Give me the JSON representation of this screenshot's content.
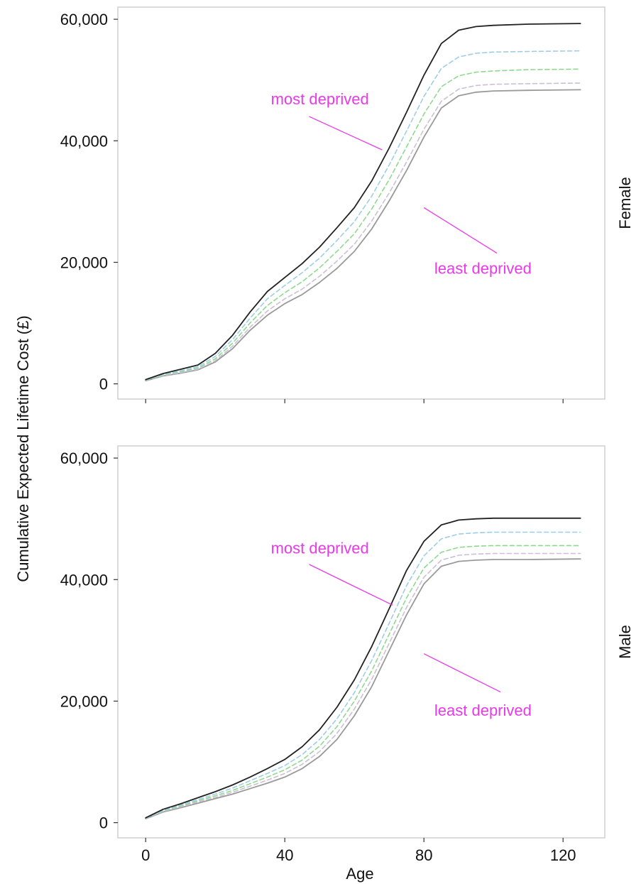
{
  "chart_data": {
    "type": "line",
    "xlabel": "Age",
    "ylabel": "Cumulative Expected Lifetime Cost (£)",
    "xlim": [
      -8,
      132
    ],
    "ylim": [
      -2500,
      62000
    ],
    "x_ticks": [
      0,
      40,
      80,
      120
    ],
    "x_tick_labels": [
      "0",
      "40",
      "80",
      "120"
    ],
    "y_ticks": [
      0,
      20000,
      40000,
      60000
    ],
    "y_tick_labels": [
      "0",
      "20,000",
      "40,000",
      "60,000"
    ],
    "grid": false,
    "annotation_color": "#e83ae8",
    "panels": [
      {
        "strip_label": "Female",
        "annotations": [
          {
            "text": "most deprived",
            "text_x": 36,
            "text_y": 46000,
            "line_from": [
              47,
              44000
            ],
            "line_to": [
              68,
              38500
            ]
          },
          {
            "text": "least deprived",
            "text_x": 83,
            "text_y": 18100,
            "line_from": [
              80,
              29000
            ],
            "line_to": [
              101,
              21500
            ]
          }
        ],
        "series": [
          {
            "style": "solid",
            "color": "#222222",
            "x": [
              0,
              5,
              10,
              15,
              20,
              25,
              30,
              35,
              40,
              45,
              50,
              55,
              60,
              65,
              70,
              75,
              80,
              85,
              90,
              95,
              100,
              110,
              125
            ],
            "y": [
              700,
              1700,
              2400,
              3100,
              5000,
              8000,
              11800,
              15200,
              17500,
              19800,
              22500,
              25700,
              29000,
              33400,
              38800,
              44700,
              50800,
              56000,
              58200,
              58800,
              59000,
              59200,
              59300
            ]
          },
          {
            "style": "dashed",
            "color": "#9ecde8",
            "x": [
              0,
              5,
              10,
              15,
              20,
              25,
              30,
              35,
              40,
              45,
              50,
              55,
              60,
              65,
              70,
              75,
              80,
              85,
              90,
              95,
              100,
              110,
              125
            ],
            "y": [
              650,
              1550,
              2150,
              2800,
              4500,
              7300,
              10800,
              14000,
              16200,
              18300,
              20700,
              23600,
              26700,
              30900,
              36000,
              41600,
              47300,
              51900,
              53800,
              54400,
              54600,
              54700,
              54800
            ]
          },
          {
            "style": "dashed",
            "color": "#8fd98f",
            "x": [
              0,
              5,
              10,
              15,
              20,
              25,
              30,
              35,
              40,
              45,
              50,
              55,
              60,
              65,
              70,
              75,
              80,
              85,
              90,
              95,
              100,
              110,
              125
            ],
            "y": [
              600,
              1450,
              2000,
              2600,
              4100,
              6700,
              10000,
              12900,
              15000,
              16800,
              19100,
              21800,
              24700,
              28800,
              33600,
              39000,
              44400,
              48900,
              50700,
              51300,
              51500,
              51700,
              51800
            ]
          },
          {
            "style": "dashed",
            "color": "#cdbfd6",
            "x": [
              0,
              5,
              10,
              15,
              20,
              25,
              30,
              35,
              40,
              45,
              50,
              55,
              60,
              65,
              70,
              75,
              80,
              85,
              90,
              95,
              100,
              110,
              125
            ],
            "y": [
              560,
              1350,
              1850,
              2400,
              3800,
              6200,
              9300,
              12000,
              14000,
              15600,
              17700,
              20200,
              23000,
              26800,
              31400,
              36500,
              41900,
              46500,
              48500,
              49100,
              49300,
              49400,
              49500
            ]
          },
          {
            "style": "solid",
            "color": "#9a9a9a",
            "x": [
              0,
              5,
              10,
              15,
              20,
              25,
              30,
              35,
              40,
              45,
              50,
              55,
              60,
              65,
              70,
              75,
              80,
              85,
              90,
              95,
              100,
              110,
              125
            ],
            "y": [
              500,
              1300,
              1750,
              2300,
              3600,
              5800,
              8800,
              11300,
              13200,
              14700,
              16700,
              19000,
              21800,
              25500,
              30100,
              35100,
              40600,
              45400,
              47400,
              48000,
              48200,
              48300,
              48400
            ]
          }
        ]
      },
      {
        "strip_label": "Male",
        "annotations": [
          {
            "text": "most deprived",
            "text_x": 36,
            "text_y": 44300,
            "line_from": [
              47,
              42500
            ],
            "line_to": [
              71,
              35800
            ]
          },
          {
            "text": "least deprived",
            "text_x": 83,
            "text_y": 17600,
            "line_from": [
              80,
              27800
            ],
            "line_to": [
              102,
              21500
            ]
          }
        ],
        "series": [
          {
            "style": "solid",
            "color": "#222222",
            "x": [
              0,
              5,
              10,
              15,
              20,
              25,
              30,
              35,
              40,
              45,
              50,
              55,
              60,
              65,
              70,
              75,
              80,
              85,
              90,
              95,
              100,
              110,
              125
            ],
            "y": [
              800,
              2200,
              3100,
              4100,
              5100,
              6200,
              7500,
              8900,
              10400,
              12500,
              15300,
              19000,
              23500,
              29000,
              35200,
              41500,
              46300,
              49000,
              49800,
              50000,
              50100,
              50100,
              50100
            ]
          },
          {
            "style": "dashed",
            "color": "#9ecde8",
            "x": [
              0,
              5,
              10,
              15,
              20,
              25,
              30,
              35,
              40,
              45,
              50,
              55,
              60,
              65,
              70,
              75,
              80,
              85,
              90,
              95,
              100,
              110,
              125
            ],
            "y": [
              760,
              2050,
              2900,
              3800,
              4700,
              5700,
              6900,
              8100,
              9400,
              11200,
              13700,
              17100,
              21400,
              26700,
              32800,
              39000,
              43900,
              46700,
              47500,
              47700,
              47800,
              47800,
              47800
            ]
          },
          {
            "style": "dashed",
            "color": "#8fd98f",
            "x": [
              0,
              5,
              10,
              15,
              20,
              25,
              30,
              35,
              40,
              45,
              50,
              55,
              60,
              65,
              70,
              75,
              80,
              85,
              90,
              95,
              100,
              110,
              125
            ],
            "y": [
              720,
              1950,
              2750,
              3600,
              4400,
              5300,
              6400,
              7500,
              8700,
              10300,
              12600,
              15800,
              20000,
              25000,
              31000,
              37000,
              41900,
              44500,
              45300,
              45500,
              45600,
              45600,
              45600
            ]
          },
          {
            "style": "dashed",
            "color": "#cdbfd6",
            "x": [
              0,
              5,
              10,
              15,
              20,
              25,
              30,
              35,
              40,
              45,
              50,
              55,
              60,
              65,
              70,
              75,
              80,
              85,
              90,
              95,
              100,
              110,
              125
            ],
            "y": [
              680,
              1850,
              2600,
              3400,
              4150,
              5000,
              6000,
              7000,
              8100,
              9600,
              11700,
              14700,
              18700,
              23600,
              29500,
              35400,
              40400,
              43200,
              44000,
              44200,
              44300,
              44300,
              44300
            ]
          },
          {
            "style": "solid",
            "color": "#9a9a9a",
            "x": [
              0,
              5,
              10,
              15,
              20,
              25,
              30,
              35,
              40,
              45,
              50,
              55,
              60,
              65,
              70,
              75,
              80,
              85,
              90,
              95,
              100,
              110,
              125
            ],
            "y": [
              640,
              1750,
              2450,
              3200,
              3950,
              4700,
              5600,
              6500,
              7500,
              8900,
              10900,
              13700,
              17600,
              22400,
              28300,
              34200,
              39300,
              42200,
              43000,
              43200,
              43300,
              43300,
              43400
            ]
          }
        ]
      }
    ]
  }
}
